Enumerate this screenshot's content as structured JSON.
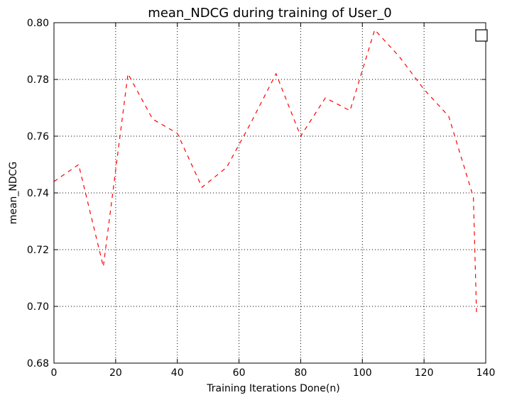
{
  "chart_data": {
    "type": "line",
    "title": "mean_NDCG during training of User_0",
    "xlabel": "Training Iterations Done(n)",
    "ylabel": "mean_NDCG",
    "xlim": [
      0,
      140
    ],
    "ylim": [
      0.68,
      0.8
    ],
    "xticks": [
      "0",
      "20",
      "40",
      "60",
      "80",
      "100",
      "120",
      "140"
    ],
    "yticks": [
      "0.68",
      "0.70",
      "0.72",
      "0.74",
      "0.76",
      "0.78",
      "0.80"
    ],
    "grid": true,
    "legend": "top-right",
    "series": [
      {
        "color": "#ff0000",
        "linestyle": "dashed",
        "x": [
          0,
          8,
          16,
          24,
          32,
          40,
          48,
          56,
          64,
          72,
          80,
          88,
          96,
          104,
          112,
          120,
          128,
          136,
          137
        ],
        "y": [
          0.744,
          0.75,
          0.714,
          0.782,
          0.766,
          0.761,
          0.742,
          0.749,
          0.765,
          0.782,
          0.76,
          0.7735,
          0.769,
          0.7975,
          0.788,
          0.7765,
          0.767,
          0.7385,
          0.698
        ]
      }
    ]
  }
}
